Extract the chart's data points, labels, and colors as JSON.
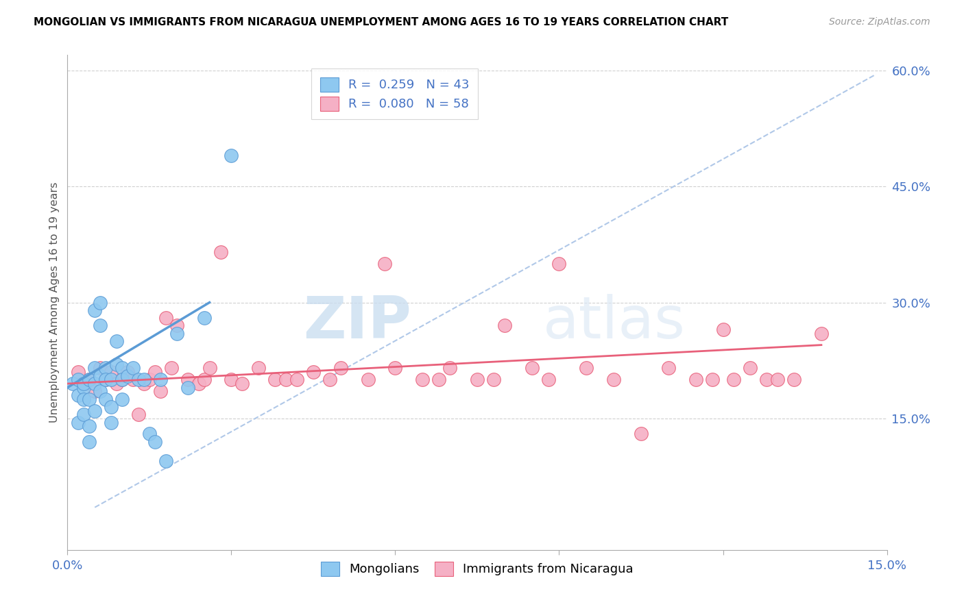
{
  "title": "MONGOLIAN VS IMMIGRANTS FROM NICARAGUA UNEMPLOYMENT AMONG AGES 16 TO 19 YEARS CORRELATION CHART",
  "source": "Source: ZipAtlas.com",
  "ylabel": "Unemployment Among Ages 16 to 19 years",
  "xlim": [
    0.0,
    0.15
  ],
  "ylim": [
    -0.02,
    0.62
  ],
  "xticks": [
    0.0,
    0.03,
    0.06,
    0.09,
    0.12,
    0.15
  ],
  "yticks_right": [
    0.15,
    0.3,
    0.45,
    0.6
  ],
  "xticklabels": [
    "0.0%",
    "",
    "",
    "",
    "",
    "15.0%"
  ],
  "yticklabels_right": [
    "15.0%",
    "30.0%",
    "45.0%",
    "60.0%"
  ],
  "legend_r1": "R =  0.259",
  "legend_n1": "N = 43",
  "legend_r2": "R =  0.080",
  "legend_n2": "N = 58",
  "blue_color": "#8ec8f0",
  "pink_color": "#f5b0c5",
  "trendline_blue_color": "#5b9bd5",
  "trendline_pink_color": "#e8607a",
  "trendline_dash_color": "#b0c8e8",
  "watermark_zip": "ZIP",
  "watermark_atlas": "atlas",
  "mongolian_x": [
    0.001,
    0.002,
    0.002,
    0.002,
    0.003,
    0.003,
    0.003,
    0.003,
    0.004,
    0.004,
    0.004,
    0.004,
    0.005,
    0.005,
    0.005,
    0.005,
    0.006,
    0.006,
    0.006,
    0.006,
    0.007,
    0.007,
    0.007,
    0.008,
    0.008,
    0.008,
    0.009,
    0.009,
    0.01,
    0.01,
    0.01,
    0.011,
    0.012,
    0.013,
    0.014,
    0.015,
    0.016,
    0.017,
    0.018,
    0.02,
    0.022,
    0.025,
    0.03
  ],
  "mongolian_y": [
    0.195,
    0.2,
    0.18,
    0.145,
    0.19,
    0.175,
    0.155,
    0.195,
    0.2,
    0.175,
    0.14,
    0.12,
    0.29,
    0.215,
    0.195,
    0.16,
    0.3,
    0.27,
    0.205,
    0.185,
    0.215,
    0.2,
    0.175,
    0.2,
    0.165,
    0.145,
    0.25,
    0.22,
    0.215,
    0.2,
    0.175,
    0.205,
    0.215,
    0.2,
    0.2,
    0.13,
    0.12,
    0.2,
    0.095,
    0.26,
    0.19,
    0.28,
    0.49
  ],
  "nicaragua_x": [
    0.002,
    0.003,
    0.004,
    0.005,
    0.006,
    0.007,
    0.008,
    0.009,
    0.01,
    0.011,
    0.012,
    0.013,
    0.014,
    0.015,
    0.016,
    0.017,
    0.018,
    0.019,
    0.02,
    0.022,
    0.024,
    0.025,
    0.026,
    0.028,
    0.03,
    0.032,
    0.035,
    0.038,
    0.04,
    0.042,
    0.045,
    0.048,
    0.05,
    0.055,
    0.058,
    0.06,
    0.065,
    0.068,
    0.07,
    0.075,
    0.078,
    0.08,
    0.085,
    0.088,
    0.09,
    0.095,
    0.1,
    0.105,
    0.11,
    0.115,
    0.118,
    0.12,
    0.122,
    0.125,
    0.128,
    0.13,
    0.133,
    0.138
  ],
  "nicaragua_y": [
    0.21,
    0.195,
    0.2,
    0.185,
    0.215,
    0.2,
    0.21,
    0.195,
    0.2,
    0.21,
    0.2,
    0.155,
    0.195,
    0.2,
    0.21,
    0.185,
    0.28,
    0.215,
    0.27,
    0.2,
    0.195,
    0.2,
    0.215,
    0.365,
    0.2,
    0.195,
    0.215,
    0.2,
    0.2,
    0.2,
    0.21,
    0.2,
    0.215,
    0.2,
    0.35,
    0.215,
    0.2,
    0.2,
    0.215,
    0.2,
    0.2,
    0.27,
    0.215,
    0.2,
    0.35,
    0.215,
    0.2,
    0.13,
    0.215,
    0.2,
    0.2,
    0.265,
    0.2,
    0.215,
    0.2,
    0.2,
    0.2,
    0.26
  ],
  "blue_trend_x": [
    0.0,
    0.026
  ],
  "blue_trend_y": [
    0.19,
    0.3
  ],
  "pink_trend_x": [
    0.0,
    0.138
  ],
  "pink_trend_y": [
    0.195,
    0.245
  ],
  "dash_trend_x": [
    0.005,
    0.148
  ],
  "dash_trend_y": [
    0.035,
    0.595
  ]
}
